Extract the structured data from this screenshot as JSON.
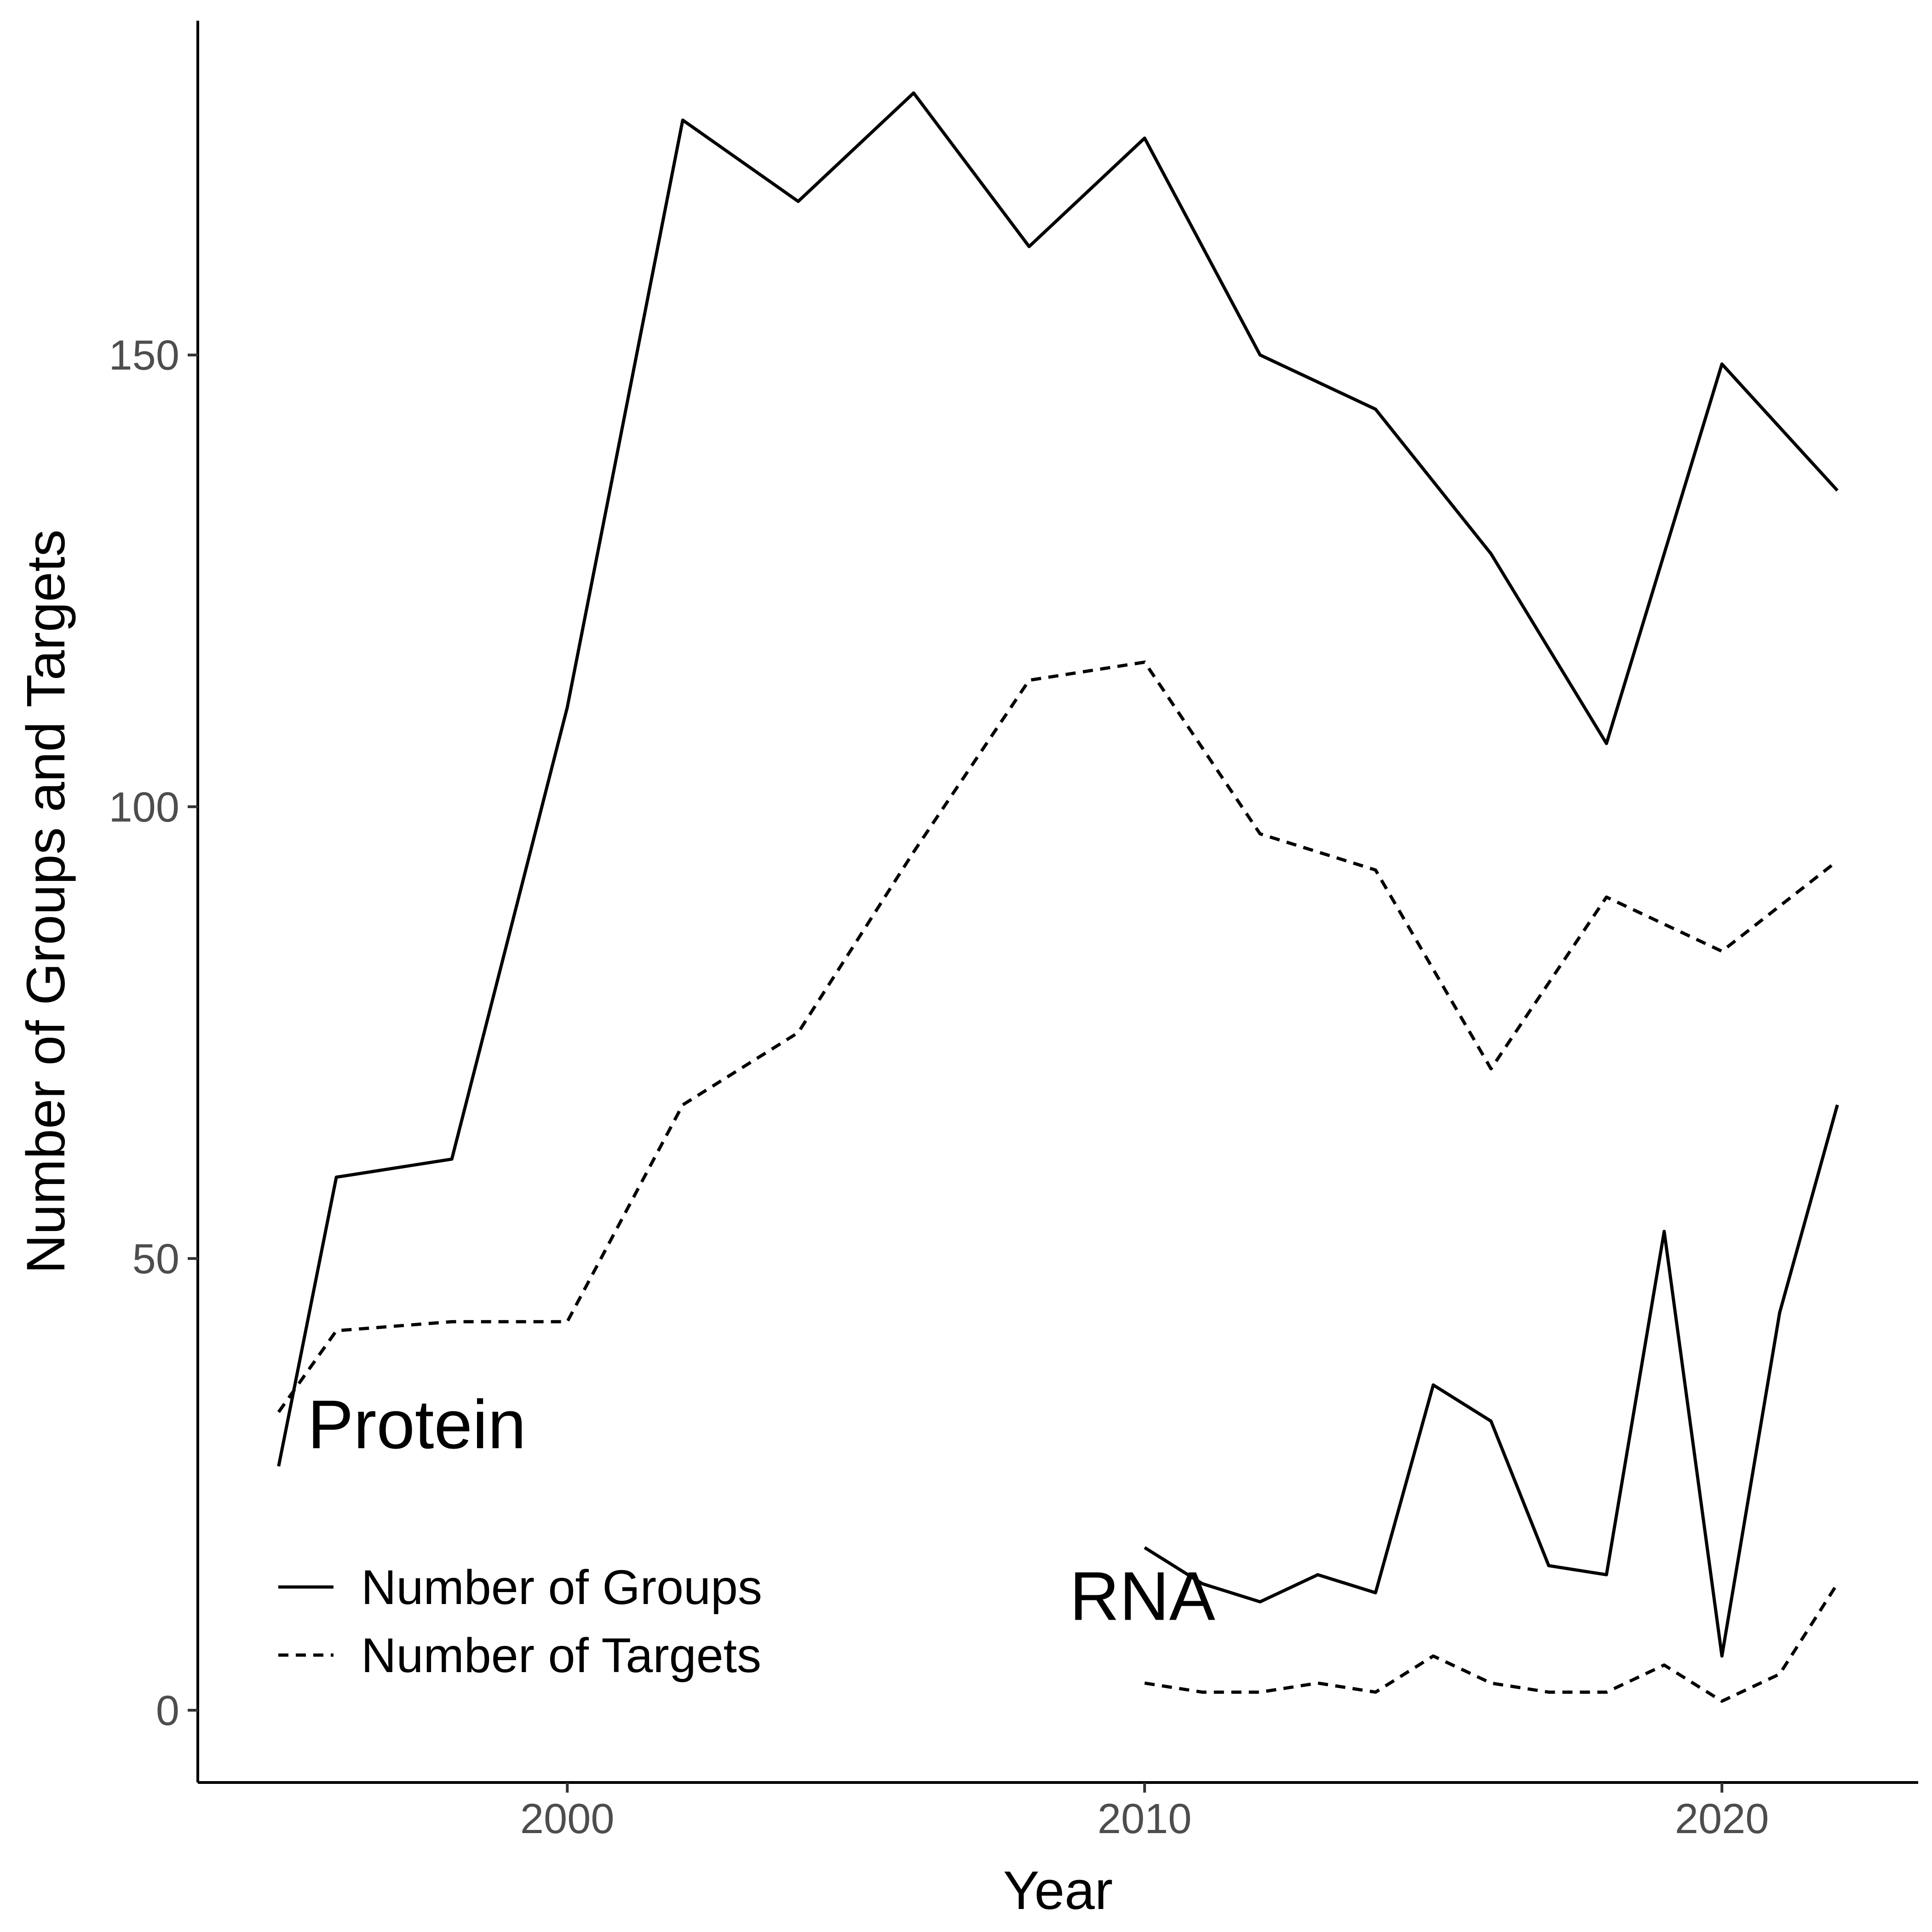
{
  "chart_data": {
    "type": "line",
    "xlabel": "Year",
    "ylabel": "Number of Groups and Targets",
    "xlim": [
      1993.6,
      2023.4
    ],
    "ylim": [
      -8,
      187
    ],
    "x_ticks": [
      2000,
      2010,
      2020
    ],
    "y_ticks": [
      0,
      50,
      100,
      150
    ],
    "grid": false,
    "legend_position": "bottom-left",
    "line_color": "#000000",
    "series": [
      {
        "name": "Number of Groups",
        "group": "Protein",
        "linetype": "solid",
        "x": [
          1995,
          1996,
          1998,
          2000,
          2002,
          2004,
          2006,
          2008,
          2010,
          2012,
          2014,
          2016,
          2018,
          2020,
          2022
        ],
        "values": [
          27,
          59,
          61,
          111,
          176,
          167,
          179,
          162,
          174,
          150,
          144,
          128,
          107,
          149,
          135
        ]
      },
      {
        "name": "Number of Targets",
        "group": "Protein",
        "linetype": "dashed",
        "x": [
          1995,
          1996,
          1998,
          2000,
          2002,
          2004,
          2006,
          2008,
          2010,
          2012,
          2014,
          2016,
          2018,
          2020,
          2022
        ],
        "values": [
          33,
          42,
          43,
          43,
          67,
          75,
          95,
          114,
          116,
          97,
          93,
          71,
          90,
          84,
          94
        ]
      },
      {
        "name": "Number of Groups",
        "group": "RNA",
        "linetype": "solid",
        "x": [
          2010,
          2011,
          2012,
          2013,
          2014,
          2015,
          2016,
          2017,
          2018,
          2019,
          2020,
          2021,
          2022
        ],
        "values": [
          18,
          14,
          12,
          15,
          13,
          36,
          32,
          16,
          15,
          53,
          6,
          44,
          67
        ]
      },
      {
        "name": "Number of Targets",
        "group": "RNA",
        "linetype": "dashed",
        "x": [
          2010,
          2011,
          2012,
          2013,
          2014,
          2015,
          2016,
          2017,
          2018,
          2019,
          2020,
          2021,
          2022
        ],
        "values": [
          3,
          2,
          2,
          3,
          2,
          6,
          3,
          2,
          2,
          5,
          1,
          4,
          14
        ]
      }
    ],
    "legend": [
      {
        "label": "Number of Groups",
        "linetype": "solid"
      },
      {
        "label": "Number of Targets",
        "linetype": "dashed"
      }
    ],
    "annotations": [
      {
        "text": "Protein",
        "x": 1995.5,
        "y": 29
      },
      {
        "text": "RNA",
        "x": 2008.7,
        "y": 10
      }
    ]
  }
}
